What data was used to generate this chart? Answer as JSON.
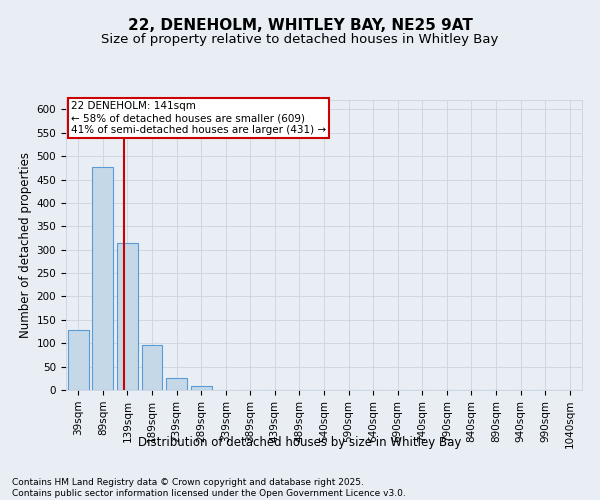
{
  "title_line1": "22, DENEHOLM, WHITLEY BAY, NE25 9AT",
  "title_line2": "Size of property relative to detached houses in Whitley Bay",
  "xlabel": "Distribution of detached houses by size in Whitley Bay",
  "ylabel": "Number of detached properties",
  "categories": [
    "39sqm",
    "89sqm",
    "139sqm",
    "189sqm",
    "239sqm",
    "289sqm",
    "339sqm",
    "389sqm",
    "439sqm",
    "489sqm",
    "540sqm",
    "590sqm",
    "640sqm",
    "690sqm",
    "740sqm",
    "790sqm",
    "840sqm",
    "890sqm",
    "940sqm",
    "990sqm",
    "1040sqm"
  ],
  "values": [
    128,
    476,
    315,
    97,
    25,
    8,
    1,
    0,
    0,
    0,
    1,
    0,
    0,
    0,
    0,
    0,
    0,
    0,
    0,
    0,
    0
  ],
  "bar_color": "#c5d8e8",
  "bar_edge_color": "#5b9bd5",
  "grid_color": "#c8d4e0",
  "background_color": "#e8eef4",
  "vline_color": "#cc0000",
  "vline_x": 1.85,
  "annotation_box_text": "22 DENEHOLM: 141sqm\n← 58% of detached houses are smaller (609)\n41% of semi-detached houses are larger (431) →",
  "annotation_box_color": "#cc0000",
  "annotation_box_bg": "#ffffff",
  "footnote": "Contains HM Land Registry data © Crown copyright and database right 2025.\nContains public sector information licensed under the Open Government Licence v3.0.",
  "ylim": [
    0,
    620
  ],
  "yticks": [
    0,
    50,
    100,
    150,
    200,
    250,
    300,
    350,
    400,
    450,
    500,
    550,
    600
  ],
  "title1_fontsize": 11,
  "title2_fontsize": 9.5,
  "axis_label_fontsize": 8.5,
  "tick_fontsize": 7.5,
  "footnote_fontsize": 6.5,
  "annotation_fontsize": 7.5
}
